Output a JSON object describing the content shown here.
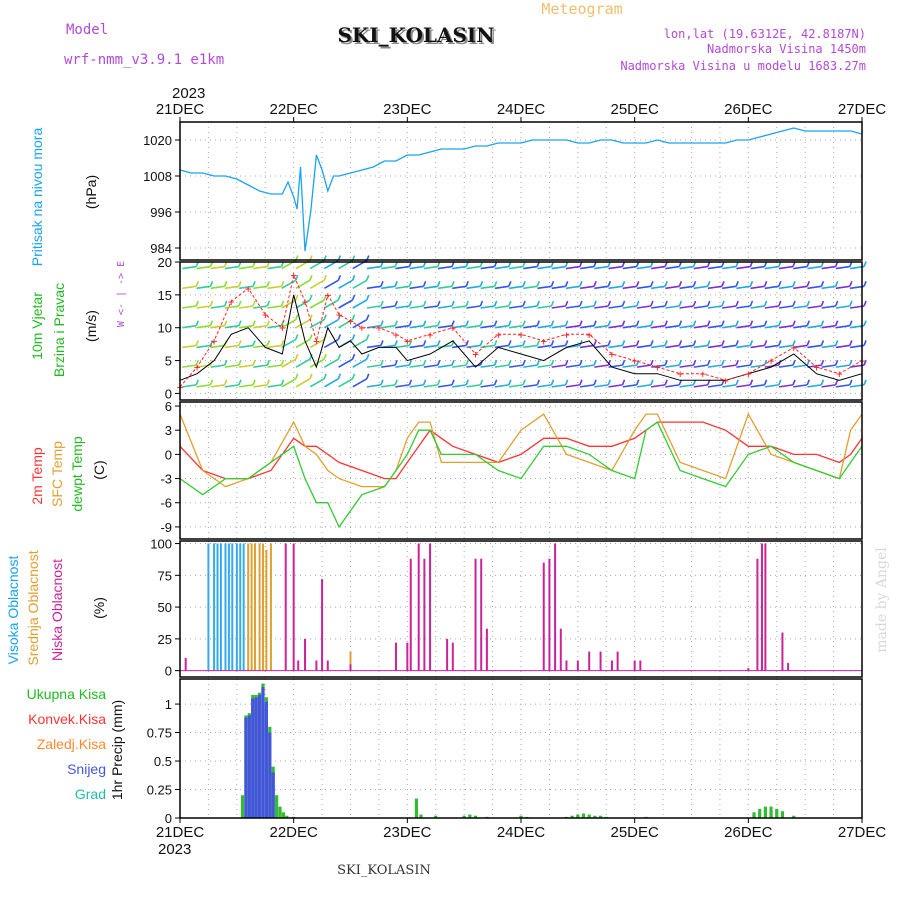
{
  "header": {
    "model_label": "Model",
    "model_name": "wrf-nmm_v3.9.1 e1km",
    "station": "SKI_KOLASIN",
    "product": "Meteogram",
    "lonlat": "lon,lat (19.6312E, 42.8187N)",
    "elevation": "Nadmorska Visina 1450m",
    "model_elevation": "Nadmorska Visina u modelu 1683.27m",
    "year_top": "2023",
    "year_bottom": "2023",
    "footer_station": "SKI_KOLASIN",
    "credit": "made by Angel"
  },
  "time_axis": {
    "labels": [
      "21DEC",
      "22DEC",
      "23DEC",
      "24DEC",
      "25DEC",
      "26DEC",
      "27DEC"
    ],
    "range_days": [
      0,
      6
    ]
  },
  "chart_data": [
    {
      "type": "line",
      "panel": "pressure",
      "ylabel_main": "Pritisak na nivou mora",
      "ylabel_unit": "(hPa)",
      "ylim": [
        980,
        1026
      ],
      "yticks": [
        984,
        996,
        1008,
        1020
      ],
      "colors": {
        "line": "#1aa3ee"
      },
      "series": [
        {
          "x": [
            0,
            0.1,
            0.2,
            0.3,
            0.4,
            0.5,
            0.6,
            0.7,
            0.8,
            0.9,
            0.95,
            1.0,
            1.03,
            1.06,
            1.1,
            1.15,
            1.2,
            1.25,
            1.3,
            1.35,
            1.4,
            1.5,
            1.6,
            1.7,
            1.8,
            1.9,
            2.0,
            2.1,
            2.2,
            2.3,
            2.4,
            2.5,
            2.6,
            2.7,
            2.8,
            2.9,
            3.0,
            3.1,
            3.2,
            3.3,
            3.4,
            3.5,
            3.6,
            3.7,
            3.8,
            3.9,
            4.0,
            4.1,
            4.2,
            4.3,
            4.4,
            4.5,
            4.6,
            4.7,
            4.8,
            4.9,
            5.0,
            5.1,
            5.2,
            5.3,
            5.4,
            5.5,
            5.6,
            5.7,
            5.8,
            5.9,
            6.0
          ],
          "values": [
            1010,
            1009,
            1009,
            1008,
            1008,
            1007,
            1005,
            1003,
            1002,
            1002,
            1006,
            1001,
            997,
            1011,
            983,
            996,
            1015,
            1010,
            1003,
            1008,
            1008,
            1009,
            1010,
            1011,
            1013,
            1013,
            1015,
            1015,
            1016,
            1017,
            1017,
            1017,
            1018,
            1018,
            1019,
            1019,
            1019,
            1020,
            1020,
            1020,
            1020,
            1019,
            1019,
            1020,
            1020,
            1019,
            1019,
            1019,
            1020,
            1019,
            1019,
            1019,
            1019,
            1019,
            1019,
            1020,
            1020,
            1021,
            1022,
            1023,
            1024,
            1023,
            1023,
            1023,
            1023,
            1023,
            1022
          ]
        }
      ]
    },
    {
      "type": "line",
      "panel": "wind",
      "ylabel_main": "10m Vjetar",
      "ylabel_sub": "Brzina i Pravac",
      "ylabel_unit": "(m/s)",
      "compass": "W <- | -> E",
      "ylim": [
        -1,
        20
      ],
      "yticks": [
        0,
        5,
        10,
        15,
        20
      ],
      "colors": {
        "speed": "#000000",
        "gust": "#ff2222"
      },
      "series": [
        {
          "name": "speed",
          "x": [
            0,
            0.15,
            0.3,
            0.45,
            0.6,
            0.75,
            0.9,
            1.0,
            1.1,
            1.2,
            1.3,
            1.4,
            1.5,
            1.6,
            1.75,
            1.9,
            2.0,
            2.2,
            2.4,
            2.6,
            2.8,
            3.0,
            3.2,
            3.4,
            3.6,
            3.8,
            4.0,
            4.2,
            4.4,
            4.6,
            4.8,
            5.0,
            5.2,
            5.4,
            5.6,
            5.8,
            6.0
          ],
          "values": [
            2,
            3,
            5,
            9,
            10,
            7,
            6,
            15,
            8,
            4,
            10,
            7,
            8,
            6,
            7,
            7,
            5,
            6,
            8,
            4,
            7,
            6,
            5,
            7,
            8,
            4,
            3,
            3,
            2,
            2,
            2,
            3,
            4,
            6,
            3,
            2,
            3
          ]
        },
        {
          "name": "gust",
          "x": [
            0,
            0.15,
            0.3,
            0.45,
            0.6,
            0.75,
            0.9,
            1.0,
            1.1,
            1.2,
            1.3,
            1.4,
            1.5,
            1.6,
            1.75,
            1.9,
            2.0,
            2.2,
            2.4,
            2.6,
            2.8,
            3.0,
            3.2,
            3.4,
            3.6,
            3.8,
            4.0,
            4.2,
            4.4,
            4.6,
            4.8,
            5.0,
            5.2,
            5.4,
            5.6,
            5.8,
            6.0
          ],
          "values": [
            1,
            4,
            8,
            14,
            16,
            12,
            10,
            18,
            14,
            8,
            15,
            12,
            11,
            10,
            10,
            9,
            8,
            9,
            10,
            6,
            9,
            9,
            8,
            9,
            9,
            6,
            5,
            4,
            3,
            3,
            2,
            3,
            5,
            7,
            4,
            3,
            5
          ]
        }
      ]
    },
    {
      "type": "line",
      "panel": "temperature",
      "ylabel_a": "2m Temp",
      "ylabel_b": "SFC Temp",
      "ylabel_c": "dewpt Temp",
      "ylabel_unit": "(C)",
      "ylim": [
        -10.5,
        6.5
      ],
      "yticks": [
        -9,
        -6,
        -3,
        0,
        3,
        6
      ],
      "colors": {
        "t2m": "#ff3333",
        "sfc": "#e0a030",
        "dew": "#33cc33"
      },
      "series": [
        {
          "name": "2m Temp",
          "x": [
            0,
            0.2,
            0.4,
            0.6,
            0.8,
            1.0,
            1.1,
            1.2,
            1.3,
            1.4,
            1.6,
            1.8,
            1.9,
            2.0,
            2.1,
            2.2,
            2.3,
            2.4,
            2.6,
            2.8,
            3.0,
            3.2,
            3.4,
            3.6,
            3.8,
            4.0,
            4.1,
            4.2,
            4.4,
            4.6,
            4.8,
            5.0,
            5.2,
            5.4,
            5.6,
            5.8,
            5.9,
            6.0
          ],
          "values": [
            1,
            -2,
            -3,
            -3,
            -2,
            2,
            1,
            1,
            0,
            -1,
            -2,
            -3,
            -3,
            -1,
            1,
            3,
            2,
            1,
            0,
            -1,
            0,
            2,
            2,
            1,
            1,
            2,
            3,
            4,
            4,
            4,
            3,
            1,
            1,
            0,
            0,
            -1,
            0,
            2
          ]
        },
        {
          "name": "SFC Temp",
          "x": [
            0,
            0.2,
            0.4,
            0.6,
            0.8,
            1.0,
            1.1,
            1.2,
            1.3,
            1.4,
            1.6,
            1.8,
            1.9,
            2.0,
            2.1,
            2.2,
            2.3,
            2.4,
            2.6,
            2.8,
            3.0,
            3.2,
            3.4,
            3.6,
            3.8,
            4.0,
            4.1,
            4.2,
            4.4,
            4.6,
            4.8,
            5.0,
            5.2,
            5.4,
            5.6,
            5.8,
            5.9,
            6.0
          ],
          "values": [
            5,
            -2,
            -4,
            -3,
            -1,
            4,
            1,
            0,
            -2,
            -3,
            -4,
            -4,
            -2,
            2,
            4,
            4,
            -1,
            -1,
            -1,
            -1,
            3,
            5,
            0,
            -1,
            -2,
            3,
            5,
            5,
            -1,
            -2,
            -3,
            5,
            0,
            -1,
            -2,
            -3,
            3,
            5
          ]
        },
        {
          "name": "dewpt Temp",
          "x": [
            0,
            0.2,
            0.4,
            0.6,
            0.8,
            1.0,
            1.1,
            1.2,
            1.3,
            1.4,
            1.6,
            1.8,
            1.9,
            2.0,
            2.1,
            2.2,
            2.3,
            2.4,
            2.6,
            2.8,
            3.0,
            3.2,
            3.4,
            3.6,
            3.8,
            4.0,
            4.1,
            4.2,
            4.4,
            4.6,
            4.8,
            5.0,
            5.2,
            5.4,
            5.6,
            5.8,
            5.9,
            6.0
          ],
          "values": [
            -3,
            -5,
            -3,
            -3,
            -1,
            1,
            -3,
            -6,
            -6,
            -9,
            -5,
            -4,
            -2,
            0,
            3,
            3,
            0,
            0,
            0,
            -2,
            -3,
            1,
            1,
            0,
            -2,
            -3,
            3,
            4,
            -2,
            -3,
            -4,
            0,
            1,
            -1,
            -2,
            -3,
            -1,
            1
          ]
        }
      ]
    },
    {
      "type": "bar",
      "panel": "cloud",
      "ylabel_a": "Visoka Oblacnost",
      "ylabel_b": "Srednja Oblacnost",
      "ylabel_c": "Niska Oblacnost",
      "ylabel_unit": "(%)",
      "ylim": [
        -5,
        102
      ],
      "yticks": [
        0,
        25,
        50,
        75,
        100
      ],
      "colors": {
        "high": "#33aaee",
        "mid": "#e0a030",
        "low": "#cc2299"
      },
      "series": [
        {
          "name": "Visoka Oblacnost",
          "x": [
            0.25,
            0.3,
            0.33,
            0.36,
            0.4,
            0.43,
            0.46,
            0.5,
            0.53,
            0.56
          ],
          "values": [
            100,
            100,
            100,
            100,
            100,
            100,
            100,
            100,
            100,
            100
          ]
        },
        {
          "name": "Srednja Oblacnost",
          "x": [
            0.6,
            0.63,
            0.66,
            0.7,
            0.73,
            0.76,
            0.8,
            1.5
          ],
          "values": [
            100,
            100,
            100,
            100,
            100,
            95,
            100,
            15
          ]
        },
        {
          "name": "Niska Oblacnost",
          "x": [
            0.05,
            0.93,
            1.0,
            1.04,
            1.1,
            1.2,
            1.25,
            1.3,
            1.5,
            1.9,
            2.0,
            2.03,
            2.1,
            2.15,
            2.2,
            2.35,
            2.4,
            2.6,
            2.65,
            2.7,
            3.2,
            3.25,
            3.3,
            3.35,
            3.4,
            3.5,
            3.6,
            3.7,
            3.8,
            3.85,
            4.0,
            4.05,
            5.0,
            5.08,
            5.12,
            5.15,
            5.3,
            5.35
          ],
          "values": [
            10,
            100,
            100,
            8,
            25,
            8,
            72,
            8,
            5,
            22,
            22,
            88,
            100,
            88,
            100,
            25,
            22,
            88,
            88,
            33,
            85,
            88,
            100,
            33,
            8,
            8,
            15,
            15,
            8,
            15,
            8,
            8,
            2,
            88,
            100,
            100,
            30,
            6
          ]
        }
      ]
    },
    {
      "type": "bar",
      "panel": "precip",
      "legend": [
        "Ukupna Kisa",
        "Konvek.Kisa",
        "Zaledj.Kisa",
        "Snijeg",
        "Grad"
      ],
      "ylabel_unit": "1hr Precip (mm)",
      "ylim": [
        0,
        1.22
      ],
      "yticks": [
        0,
        0.25,
        0.5,
        0.75,
        1
      ],
      "colors": {
        "total": "#33bb33",
        "conv": "#ff3333",
        "frz": "#ff8833",
        "snow": "#4455dd",
        "grad": "#22bbaa"
      },
      "series": [
        {
          "name": "Ukupna Kisa",
          "x": [
            0.55,
            0.58,
            0.61,
            0.64,
            0.67,
            0.7,
            0.73,
            0.76,
            0.79,
            0.82,
            0.85,
            0.88,
            0.91,
            0.94,
            1.0,
            2.08,
            2.12,
            2.25,
            2.5,
            2.55,
            2.6,
            2.7,
            3.0,
            3.05,
            3.4,
            3.45,
            3.5,
            3.55,
            3.6,
            3.65,
            3.7,
            3.75,
            4.1,
            5.05,
            5.1,
            5.15,
            5.2,
            5.25,
            5.3,
            5.4
          ],
          "values": [
            0.2,
            0.9,
            0.92,
            1.08,
            1.08,
            1.1,
            1.18,
            1.06,
            0.8,
            0.45,
            0.2,
            0.1,
            0.05,
            0.02,
            0.01,
            0.17,
            0.03,
            0.02,
            0.02,
            0.03,
            0.02,
            0.01,
            0.02,
            0.01,
            0.01,
            0.02,
            0.03,
            0.04,
            0.03,
            0.02,
            0.02,
            0.01,
            0.01,
            0.05,
            0.08,
            0.1,
            0.1,
            0.08,
            0.06,
            0.02
          ]
        },
        {
          "name": "Snijeg",
          "x": [
            0.58,
            0.61,
            0.64,
            0.67,
            0.7,
            0.73,
            0.76,
            0.79,
            0.82
          ],
          "values": [
            0.88,
            0.9,
            1.05,
            1.06,
            1.08,
            1.15,
            1.02,
            0.75,
            0.4
          ]
        }
      ]
    }
  ]
}
